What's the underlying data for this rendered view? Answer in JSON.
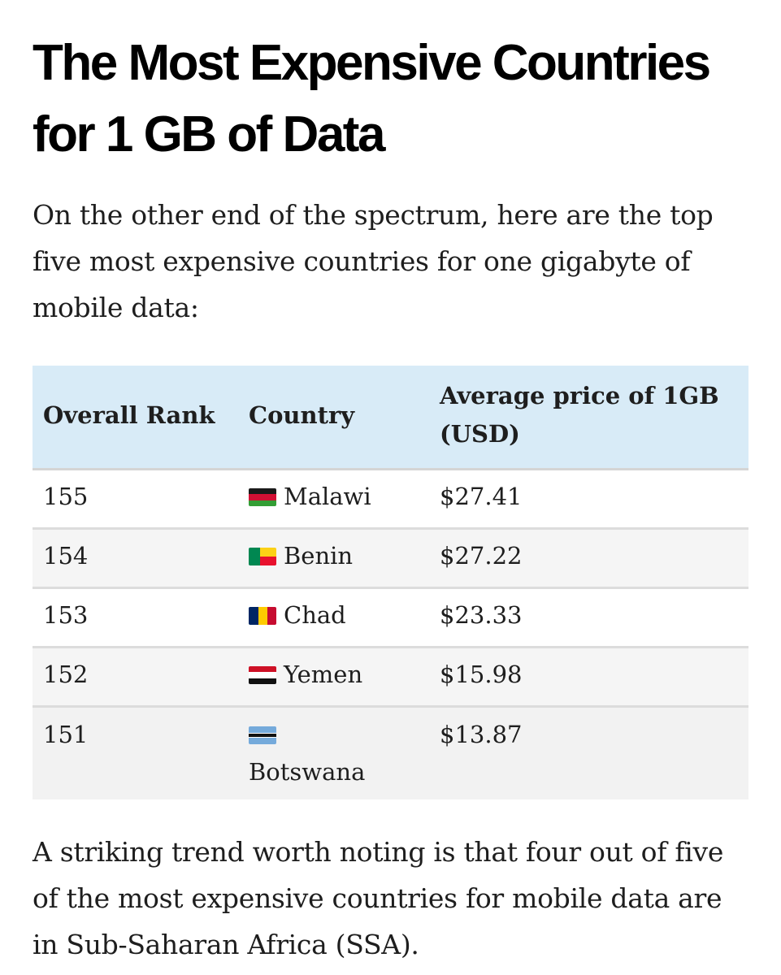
{
  "article": {
    "title": "The Most Expensive Countries for 1 GB of Data",
    "intro": "On the other end of the spectrum, here are the top five most expensive countries for one gigabyte of mobile data:",
    "outro": "A striking trend worth noting is that four out of five of the most expensive countries for mobile data are in Sub-Saharan Africa (SSA)."
  },
  "table": {
    "headers": {
      "rank": "Overall Rank",
      "country": "Country",
      "price": "Average price of 1GB (USD)"
    },
    "header_color": "#d8ebf7",
    "rows": [
      {
        "rank": "155",
        "country": "Malawi",
        "flag": "malawi-flag-icon",
        "price": "$27.41"
      },
      {
        "rank": "154",
        "country": "Benin",
        "flag": "benin-flag-icon",
        "price": "$27.22"
      },
      {
        "rank": "153",
        "country": "Chad",
        "flag": "chad-flag-icon",
        "price": "$23.33"
      },
      {
        "rank": "152",
        "country": "Yemen",
        "flag": "yemen-flag-icon",
        "price": "$15.98"
      },
      {
        "rank": "151",
        "country": "Botswana",
        "flag": "botswana-flag-icon",
        "price": "$13.87"
      }
    ]
  }
}
